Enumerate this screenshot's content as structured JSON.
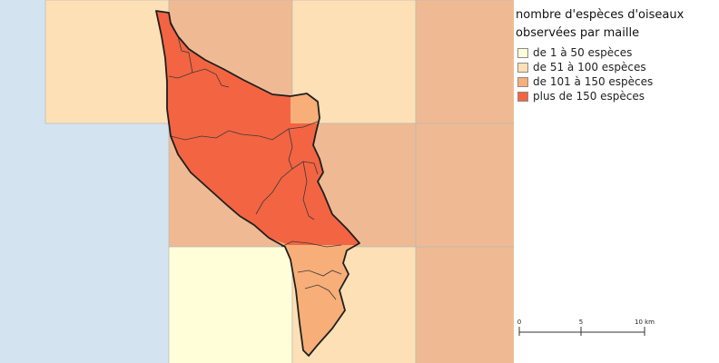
{
  "colors": {
    "sea": "#d3e3ef",
    "cell_border": "#b9b9b9",
    "outline": "#1f1f1f",
    "inner_border": "#3a3a3a"
  },
  "legend": {
    "title": "nombre d'espèces d'oiseaux observées par maille",
    "items": [
      {
        "label": "de 1 à 50 espèces",
        "color": "#fffed9"
      },
      {
        "label": "de 51 à 100 espèces",
        "color": "#fde0b5"
      },
      {
        "label": "de 101 à 150 espèces",
        "color": "#f7ae78"
      },
      {
        "label": "plus de 150 espèces",
        "color": "#f36442"
      }
    ]
  },
  "grid_cells": [
    {
      "row": 0,
      "col": 0,
      "class": 1
    },
    {
      "row": 0,
      "col": 1,
      "class": 2
    },
    {
      "row": 0,
      "col": 2,
      "class": 1
    },
    {
      "row": 0,
      "col": 3,
      "class": 2
    },
    {
      "row": 1,
      "col": 1,
      "class": 2
    },
    {
      "row": 1,
      "col": 2,
      "class": 2
    },
    {
      "row": 1,
      "col": 3,
      "class": 2
    },
    {
      "row": 2,
      "col": 1,
      "class": 0
    },
    {
      "row": 2,
      "col": 2,
      "class": 1
    },
    {
      "row": 2,
      "col": 3,
      "class": 2
    }
  ],
  "scale_bar": {
    "ticks": [
      "0",
      "5",
      "10 km"
    ]
  }
}
